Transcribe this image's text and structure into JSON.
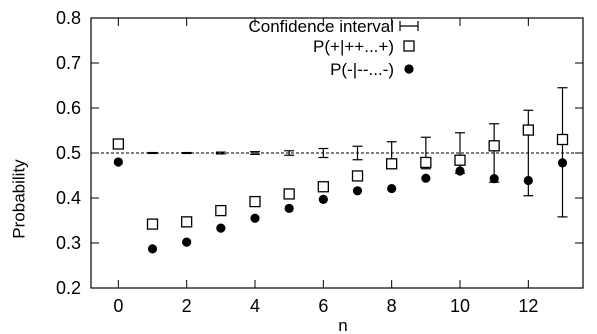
{
  "chart_data": {
    "type": "scatter",
    "xlabel": "n",
    "ylabel": "Probability",
    "xlim": [
      -0.8,
      13.6
    ],
    "ylim": [
      0.2,
      0.8
    ],
    "xticks": [
      0,
      2,
      4,
      6,
      8,
      10,
      12
    ],
    "xtick_labels": [
      "0",
      "2",
      "4",
      "6",
      "8",
      "10",
      "12"
    ],
    "yticks": [
      0.2,
      0.3,
      0.4,
      0.5,
      0.6,
      0.7,
      0.8
    ],
    "ytick_labels": [
      "0.2",
      "0.3",
      "0.4",
      "0.5",
      "0.6",
      "0.7",
      "0.8"
    ],
    "grid": false,
    "legend_position": "top-right",
    "reference_line": {
      "y": 0.5,
      "style": "dashed"
    },
    "series": [
      {
        "name": "Confidence interval",
        "marker": "errorbar",
        "center": 0.5,
        "x": [
          1,
          2,
          3,
          4,
          5,
          6,
          7,
          8,
          9,
          10,
          11,
          12,
          13
        ],
        "low": [
          0.499,
          0.499,
          0.498,
          0.497,
          0.495,
          0.49,
          0.485,
          0.475,
          0.465,
          0.455,
          0.435,
          0.405,
          0.358
        ],
        "high": [
          0.501,
          0.501,
          0.502,
          0.503,
          0.505,
          0.51,
          0.515,
          0.525,
          0.535,
          0.545,
          0.565,
          0.595,
          0.645
        ]
      },
      {
        "name": "P(+|++...+)",
        "marker": "open-square",
        "x": [
          0,
          1,
          2,
          3,
          4,
          5,
          6,
          7,
          8,
          9,
          10,
          11,
          12,
          13
        ],
        "y": [
          0.52,
          0.342,
          0.347,
          0.372,
          0.392,
          0.409,
          0.425,
          0.449,
          0.476,
          0.479,
          0.484,
          0.516,
          0.551,
          0.53
        ]
      },
      {
        "name": "P(-|--...-)",
        "marker": "filled-circle",
        "x": [
          0,
          1,
          2,
          3,
          4,
          5,
          6,
          7,
          8,
          9,
          10,
          11,
          12,
          13
        ],
        "y": [
          0.48,
          0.287,
          0.302,
          0.333,
          0.355,
          0.377,
          0.397,
          0.416,
          0.421,
          0.444,
          0.46,
          0.443,
          0.439,
          0.478
        ]
      }
    ]
  }
}
